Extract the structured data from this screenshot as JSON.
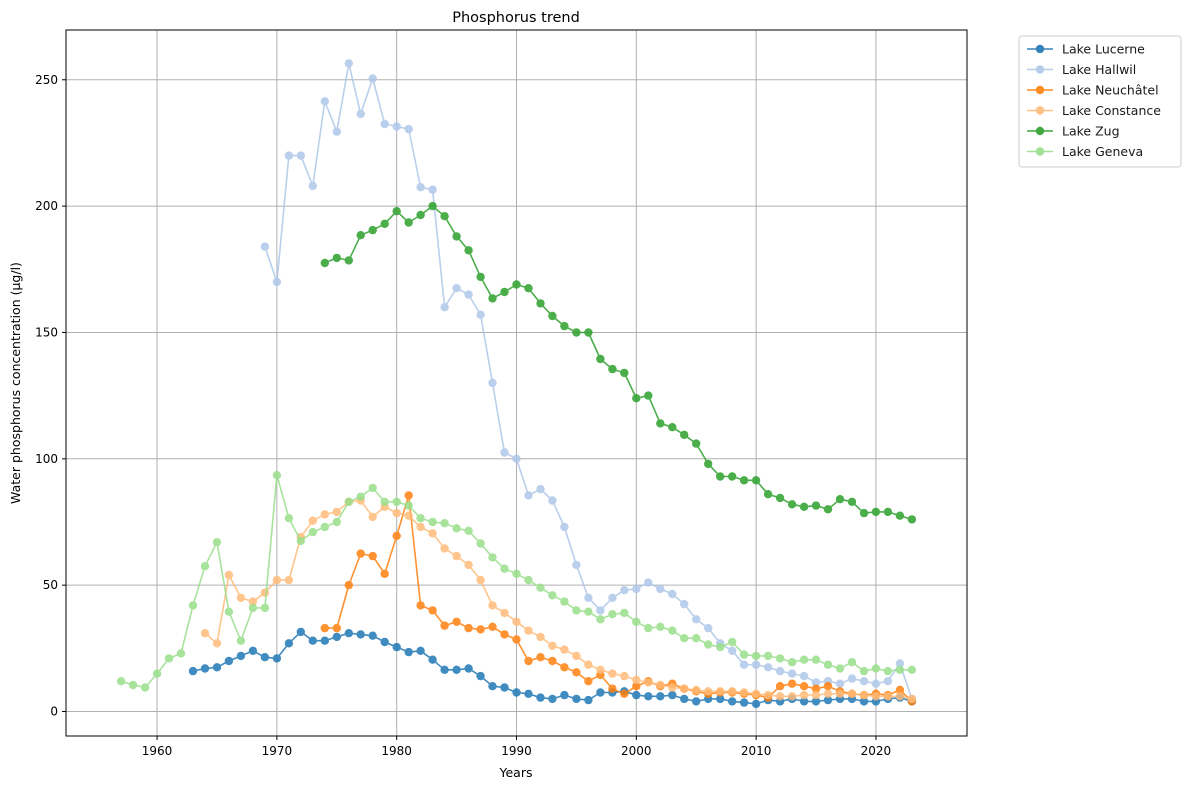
{
  "chart_data": {
    "type": "line",
    "title": "Phosphorus trend",
    "xlabel": "Years",
    "ylabel": "Water phosphorus concentration (µg/l)",
    "xlim": [
      1952.4,
      2027.6
    ],
    "ylim": [
      -9.7,
      269.7
    ],
    "xticks": [
      1960,
      1970,
      1980,
      1990,
      2000,
      2010,
      2020
    ],
    "yticks": [
      0,
      50,
      100,
      150,
      200,
      250
    ],
    "grid": true,
    "legend_position": "outside-top-right",
    "series": [
      {
        "name": "Lake Lucerne",
        "color": "#1f77b4",
        "x": [
          1963,
          1964,
          1965,
          1966,
          1967,
          1968,
          1969,
          1970,
          1971,
          1972,
          1973,
          1974,
          1975,
          1976,
          1977,
          1978,
          1979,
          1980,
          1981,
          1982,
          1983,
          1984,
          1985,
          1986,
          1987,
          1988,
          1989,
          1990,
          1991,
          1992,
          1993,
          1994,
          1995,
          1996,
          1997,
          1998,
          1999,
          2000,
          2001,
          2002,
          2003,
          2004,
          2005,
          2006,
          2007,
          2008,
          2009,
          2010,
          2011,
          2012,
          2013,
          2014,
          2015,
          2016,
          2017,
          2018,
          2019,
          2020,
          2021,
          2022,
          2023
        ],
        "y": [
          16,
          17,
          17.5,
          20,
          22,
          24,
          21.5,
          21,
          27,
          31.5,
          28,
          28,
          29.5,
          31,
          30.5,
          30,
          27.5,
          25.5,
          23.5,
          24,
          20.5,
          16.5,
          16.5,
          17,
          14,
          10,
          9.5,
          7.5,
          7,
          5.5,
          5,
          6.5,
          5,
          4.5,
          7.5,
          7.5,
          8,
          6.5,
          6,
          6,
          6.5,
          5,
          4,
          5,
          5,
          4,
          3.5,
          3,
          4.5,
          4,
          5,
          4,
          4,
          4.5,
          5,
          5,
          4,
          4,
          5,
          5.5,
          4
        ]
      },
      {
        "name": "Lake Hallwil",
        "color": "#aec7e8",
        "x": [
          1969,
          1970,
          1971,
          1972,
          1973,
          1974,
          1975,
          1976,
          1977,
          1978,
          1979,
          1980,
          1981,
          1982,
          1983,
          1984,
          1985,
          1986,
          1987,
          1988,
          1989,
          1990,
          1991,
          1992,
          1993,
          1994,
          1995,
          1996,
          1997,
          1998,
          1999,
          2000,
          2001,
          2002,
          2003,
          2004,
          2005,
          2006,
          2007,
          2008,
          2009,
          2010,
          2011,
          2012,
          2013,
          2014,
          2015,
          2016,
          2017,
          2018,
          2019,
          2020,
          2021,
          2022,
          2023
        ],
        "y": [
          184,
          170,
          220,
          220,
          208,
          241.5,
          229.5,
          256.5,
          236.5,
          250.5,
          232.5,
          231.5,
          230.5,
          207.5,
          206.5,
          160,
          167.5,
          165,
          157,
          130,
          102.5,
          100,
          85.5,
          88,
          83.5,
          73,
          58,
          45,
          40,
          45,
          48,
          48.5,
          51,
          48.5,
          46.5,
          42.5,
          36.5,
          33,
          27,
          24,
          18.5,
          18.5,
          17.5,
          16,
          15,
          14,
          11.5,
          12,
          11,
          13,
          12,
          11,
          12,
          19,
          5
        ]
      },
      {
        "name": "Lake Neuchâtel",
        "color": "#ff7f0e",
        "x": [
          1974,
          1975,
          1976,
          1977,
          1978,
          1979,
          1980,
          1981,
          1982,
          1983,
          1984,
          1985,
          1986,
          1987,
          1988,
          1989,
          1990,
          1991,
          1992,
          1993,
          1994,
          1995,
          1996,
          1997,
          1998,
          1999,
          2000,
          2001,
          2002,
          2003,
          2004,
          2005,
          2006,
          2007,
          2008,
          2009,
          2010,
          2011,
          2012,
          2013,
          2014,
          2015,
          2016,
          2017,
          2018,
          2019,
          2020,
          2021,
          2022,
          2023
        ],
        "y": [
          33,
          33,
          50,
          62.5,
          61.5,
          54.5,
          69.5,
          85.5,
          42,
          40,
          34,
          35.5,
          33,
          32.5,
          33.5,
          30.5,
          28.5,
          20,
          21.5,
          20,
          17.5,
          15.5,
          12,
          14.5,
          9,
          7,
          10,
          12,
          10,
          11,
          9,
          8,
          7,
          7.5,
          7.5,
          7,
          6.5,
          5.5,
          10,
          11,
          10,
          9,
          10,
          8,
          7,
          6.5,
          7,
          6.5,
          8.5,
          4
        ]
      },
      {
        "name": "Lake Constance",
        "color": "#ffbb78",
        "x": [
          1964,
          1965,
          1966,
          1967,
          1968,
          1969,
          1970,
          1971,
          1972,
          1973,
          1974,
          1975,
          1976,
          1977,
          1978,
          1979,
          1980,
          1981,
          1982,
          1983,
          1984,
          1985,
          1986,
          1987,
          1988,
          1989,
          1990,
          1991,
          1992,
          1993,
          1994,
          1995,
          1996,
          1997,
          1998,
          1999,
          2000,
          2001,
          2002,
          2003,
          2004,
          2005,
          2006,
          2007,
          2008,
          2009,
          2010,
          2011,
          2012,
          2013,
          2014,
          2015,
          2016,
          2017,
          2018,
          2019,
          2020,
          2021,
          2022,
          2023
        ],
        "y": [
          31,
          27,
          54,
          45,
          43.5,
          47,
          52,
          52,
          69,
          75.5,
          78,
          79,
          83,
          83.5,
          77,
          81,
          78.5,
          77.5,
          73,
          70.5,
          64.5,
          61.5,
          58,
          52,
          42,
          39,
          35.5,
          32,
          29.5,
          26,
          24.5,
          22,
          18.5,
          16.5,
          15,
          14,
          12.5,
          11.5,
          10.5,
          9.5,
          9,
          8.5,
          8,
          8,
          8,
          7.5,
          7,
          6.5,
          6,
          6,
          6.5,
          6.5,
          7,
          7,
          7,
          6.5,
          6,
          6,
          6,
          5
        ]
      },
      {
        "name": "Lake Zug",
        "color": "#2ca02c",
        "x": [
          1974,
          1975,
          1976,
          1977,
          1978,
          1979,
          1980,
          1981,
          1982,
          1983,
          1984,
          1985,
          1986,
          1987,
          1988,
          1989,
          1990,
          1991,
          1992,
          1993,
          1994,
          1995,
          1996,
          1997,
          1998,
          1999,
          2000,
          2001,
          2002,
          2003,
          2004,
          2005,
          2006,
          2007,
          2008,
          2009,
          2010,
          2011,
          2012,
          2013,
          2014,
          2015,
          2016,
          2017,
          2018,
          2019,
          2020,
          2021,
          2022,
          2023
        ],
        "y": [
          177.5,
          179.5,
          178.5,
          188.5,
          190.5,
          193,
          198,
          193.5,
          196.5,
          200,
          196,
          188,
          182.5,
          172,
          163.5,
          166,
          169,
          167.5,
          161.5,
          156.5,
          152.5,
          150,
          150,
          139.5,
          135.5,
          134,
          124,
          125,
          114,
          112.5,
          109.5,
          106,
          98,
          93,
          93,
          91.5,
          91.5,
          86,
          84.5,
          82,
          81,
          81.5,
          80,
          84,
          83,
          78.5,
          79,
          79,
          77.5,
          76
        ]
      },
      {
        "name": "Lake Geneva",
        "color": "#98df8a",
        "x": [
          1957,
          1958,
          1959,
          1960,
          1961,
          1962,
          1963,
          1964,
          1965,
          1966,
          1967,
          1968,
          1969,
          1970,
          1971,
          1972,
          1973,
          1974,
          1975,
          1976,
          1977,
          1978,
          1979,
          1980,
          1981,
          1982,
          1983,
          1984,
          1985,
          1986,
          1987,
          1988,
          1989,
          1990,
          1991,
          1992,
          1993,
          1994,
          1995,
          1996,
          1997,
          1998,
          1999,
          2000,
          2001,
          2002,
          2003,
          2004,
          2005,
          2006,
          2007,
          2008,
          2009,
          2010,
          2011,
          2012,
          2013,
          2014,
          2015,
          2016,
          2017,
          2018,
          2019,
          2020,
          2021,
          2022,
          2023
        ],
        "y": [
          12,
          10.5,
          9.5,
          15,
          21,
          23,
          42,
          57.5,
          67,
          39.5,
          28,
          41,
          41,
          93.5,
          76.5,
          67.5,
          71,
          73,
          75,
          83,
          85,
          88.5,
          83,
          83,
          81.5,
          76.5,
          75,
          74.5,
          72.5,
          71.5,
          66.5,
          61,
          56.5,
          54.5,
          52,
          49,
          46,
          43.5,
          40,
          39.5,
          36.5,
          38.5,
          39,
          35.5,
          33,
          33.5,
          32,
          29,
          29,
          26.5,
          25.5,
          27.5,
          22.5,
          22,
          22,
          21,
          19.5,
          20.5,
          20.5,
          18.5,
          17,
          19.5,
          16,
          17,
          16,
          16.5,
          16.5
        ]
      }
    ]
  }
}
